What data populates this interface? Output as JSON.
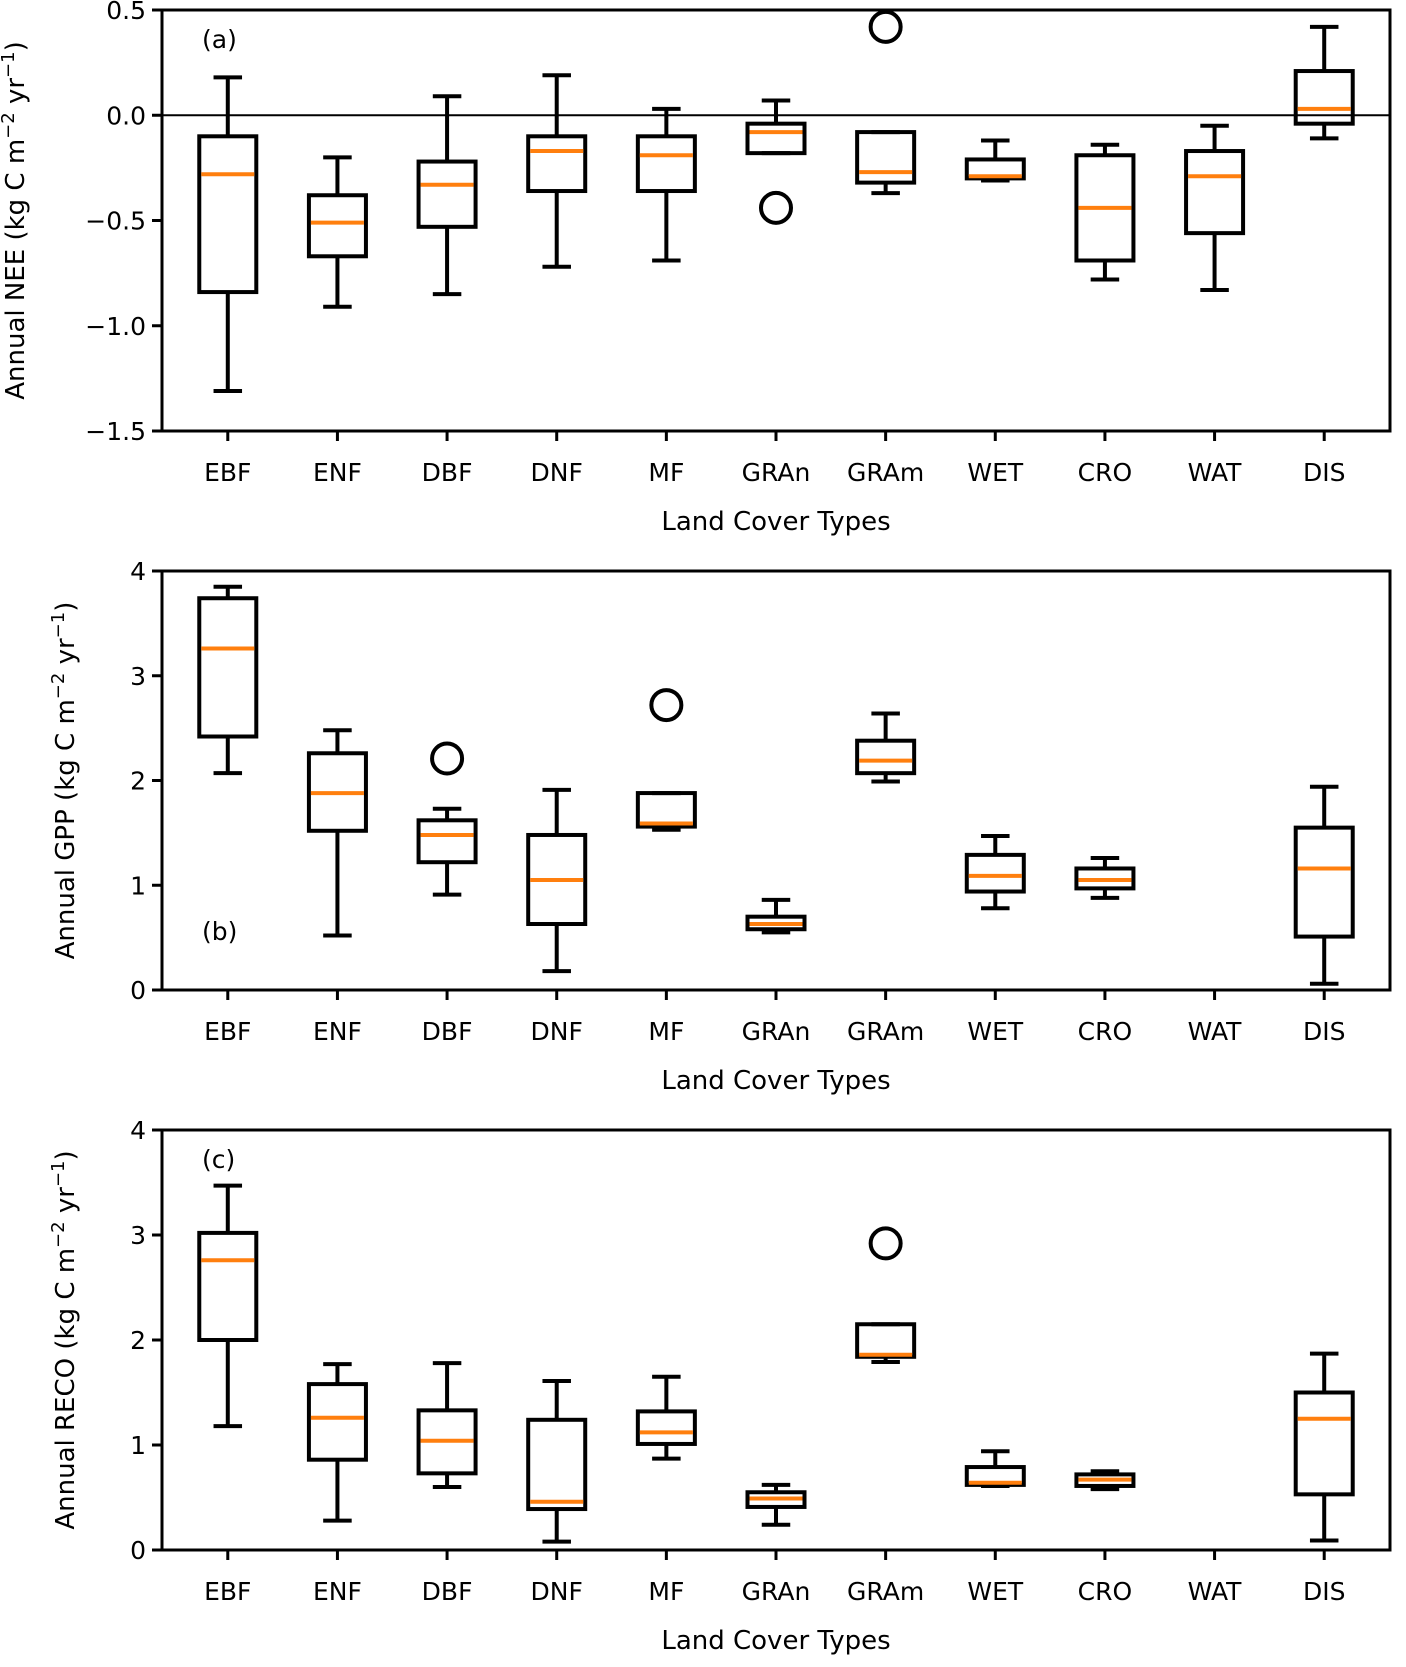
{
  "chart_data": [
    {
      "type": "box",
      "panel_label": "(a)",
      "title": "",
      "xlabel": "Land Cover Types",
      "ylabel_main": "Annual NEE (kg C m",
      "ylabel_exp1": "−2",
      "ylabel_mid": " yr",
      "ylabel_exp2": "−1",
      "ylabel_end": ")",
      "ylim": [
        -1.5,
        0.5
      ],
      "yticks": [
        -1.5,
        -1.0,
        -0.5,
        0.0,
        0.5
      ],
      "ytick_labels": [
        "−1.5",
        "−1.0",
        "−0.5",
        "0.0",
        "0.5"
      ],
      "zero_line": true,
      "categories": [
        "EBF",
        "ENF",
        "DBF",
        "DNF",
        "MF",
        "GRAn",
        "GRAm",
        "WET",
        "CRO",
        "WAT",
        "DIS"
      ],
      "boxes": [
        {
          "whislo": -1.31,
          "q1": -0.84,
          "med": -0.28,
          "q3": -0.1,
          "whishi": 0.18,
          "fliers": []
        },
        {
          "whislo": -0.91,
          "q1": -0.67,
          "med": -0.51,
          "q3": -0.38,
          "whishi": -0.2,
          "fliers": []
        },
        {
          "whislo": -0.85,
          "q1": -0.53,
          "med": -0.33,
          "q3": -0.22,
          "whishi": 0.09,
          "fliers": []
        },
        {
          "whislo": -0.72,
          "q1": -0.36,
          "med": -0.17,
          "q3": -0.1,
          "whishi": 0.19,
          "fliers": []
        },
        {
          "whislo": -0.69,
          "q1": -0.36,
          "med": -0.19,
          "q3": -0.1,
          "whishi": 0.03,
          "fliers": []
        },
        {
          "whislo": -0.18,
          "q1": -0.18,
          "med": -0.08,
          "q3": -0.04,
          "whishi": 0.07,
          "fliers": [
            -0.44
          ]
        },
        {
          "whislo": -0.37,
          "q1": -0.32,
          "med": -0.27,
          "q3": -0.08,
          "whishi": -0.08,
          "fliers": [
            0.42
          ]
        },
        {
          "whislo": -0.31,
          "q1": -0.3,
          "med": -0.29,
          "q3": -0.21,
          "whishi": -0.12,
          "fliers": []
        },
        {
          "whislo": -0.78,
          "q1": -0.69,
          "med": -0.44,
          "q3": -0.19,
          "whishi": -0.14,
          "fliers": []
        },
        {
          "whislo": -0.83,
          "q1": -0.56,
          "med": -0.29,
          "q3": -0.17,
          "whishi": -0.05,
          "fliers": []
        },
        {
          "whislo": -0.11,
          "q1": -0.04,
          "med": 0.03,
          "q3": 0.21,
          "whishi": 0.42,
          "fliers": []
        }
      ]
    },
    {
      "type": "box",
      "panel_label": "(b)",
      "title": "",
      "xlabel": "Land Cover Types",
      "ylabel_main": "Annual GPP (kg C m",
      "ylabel_exp1": "−2",
      "ylabel_mid": " yr",
      "ylabel_exp2": "−1",
      "ylabel_end": ")",
      "ylim": [
        0,
        4
      ],
      "yticks": [
        0,
        1,
        2,
        3,
        4
      ],
      "ytick_labels": [
        "0",
        "1",
        "2",
        "3",
        "4"
      ],
      "zero_line": false,
      "categories": [
        "EBF",
        "ENF",
        "DBF",
        "DNF",
        "MF",
        "GRAn",
        "GRAm",
        "WET",
        "CRO",
        "WAT",
        "DIS"
      ],
      "boxes": [
        {
          "whislo": 2.07,
          "q1": 2.42,
          "med": 3.26,
          "q3": 3.74,
          "whishi": 3.85,
          "fliers": []
        },
        {
          "whislo": 0.52,
          "q1": 1.52,
          "med": 1.88,
          "q3": 2.26,
          "whishi": 2.48,
          "fliers": []
        },
        {
          "whislo": 0.91,
          "q1": 1.22,
          "med": 1.48,
          "q3": 1.62,
          "whishi": 1.73,
          "fliers": [
            2.21
          ]
        },
        {
          "whislo": 0.18,
          "q1": 0.63,
          "med": 1.05,
          "q3": 1.48,
          "whishi": 1.91,
          "fliers": []
        },
        {
          "whislo": 1.53,
          "q1": 1.56,
          "med": 1.59,
          "q3": 1.88,
          "whishi": 1.88,
          "fliers": [
            2.72
          ]
        },
        {
          "whislo": 0.55,
          "q1": 0.58,
          "med": 0.63,
          "q3": 0.7,
          "whishi": 0.86,
          "fliers": []
        },
        {
          "whislo": 1.99,
          "q1": 2.07,
          "med": 2.19,
          "q3": 2.38,
          "whishi": 2.64,
          "fliers": []
        },
        {
          "whislo": 0.78,
          "q1": 0.94,
          "med": 1.09,
          "q3": 1.29,
          "whishi": 1.47,
          "fliers": []
        },
        {
          "whislo": 0.88,
          "q1": 0.97,
          "med": 1.05,
          "q3": 1.16,
          "whishi": 1.26,
          "fliers": []
        },
        {
          "whislo": null,
          "q1": null,
          "med": null,
          "q3": null,
          "whishi": null,
          "fliers": []
        },
        {
          "whislo": 0.06,
          "q1": 0.51,
          "med": 1.16,
          "q3": 1.55,
          "whishi": 1.94,
          "fliers": []
        }
      ]
    },
    {
      "type": "box",
      "panel_label": "(c)",
      "title": "",
      "xlabel": "Land Cover Types",
      "ylabel_main": "Annual RECO (kg C m",
      "ylabel_exp1": "−2",
      "ylabel_mid": " yr",
      "ylabel_exp2": "−1",
      "ylabel_end": ")",
      "ylim": [
        0,
        4
      ],
      "yticks": [
        0,
        1,
        2,
        3,
        4
      ],
      "ytick_labels": [
        "0",
        "1",
        "2",
        "3",
        "4"
      ],
      "zero_line": false,
      "categories": [
        "EBF",
        "ENF",
        "DBF",
        "DNF",
        "MF",
        "GRAn",
        "GRAm",
        "WET",
        "CRO",
        "WAT",
        "DIS"
      ],
      "boxes": [
        {
          "whislo": 1.18,
          "q1": 2.0,
          "med": 2.76,
          "q3": 3.02,
          "whishi": 3.47,
          "fliers": []
        },
        {
          "whislo": 0.28,
          "q1": 0.86,
          "med": 1.26,
          "q3": 1.58,
          "whishi": 1.77,
          "fliers": []
        },
        {
          "whislo": 0.6,
          "q1": 0.73,
          "med": 1.04,
          "q3": 1.33,
          "whishi": 1.78,
          "fliers": []
        },
        {
          "whislo": 0.08,
          "q1": 0.39,
          "med": 0.46,
          "q3": 1.24,
          "whishi": 1.61,
          "fliers": []
        },
        {
          "whislo": 0.87,
          "q1": 1.01,
          "med": 1.12,
          "q3": 1.32,
          "whishi": 1.65,
          "fliers": []
        },
        {
          "whislo": 0.24,
          "q1": 0.41,
          "med": 0.49,
          "q3": 0.55,
          "whishi": 0.62,
          "fliers": []
        },
        {
          "whislo": 1.79,
          "q1": 1.84,
          "med": 1.86,
          "q3": 2.15,
          "whishi": 2.15,
          "fliers": [
            2.92
          ]
        },
        {
          "whislo": 0.61,
          "q1": 0.62,
          "med": 0.64,
          "q3": 0.79,
          "whishi": 0.94,
          "fliers": []
        },
        {
          "whislo": 0.58,
          "q1": 0.61,
          "med": 0.67,
          "q3": 0.72,
          "whishi": 0.75,
          "fliers": []
        },
        {
          "whislo": null,
          "q1": null,
          "med": null,
          "q3": null,
          "whishi": null,
          "fliers": []
        },
        {
          "whislo": 0.09,
          "q1": 0.53,
          "med": 1.25,
          "q3": 1.5,
          "whishi": 1.87,
          "fliers": []
        }
      ]
    }
  ],
  "colors": {
    "median": "#ff7f0e",
    "box": "#000000",
    "background": "#ffffff"
  }
}
